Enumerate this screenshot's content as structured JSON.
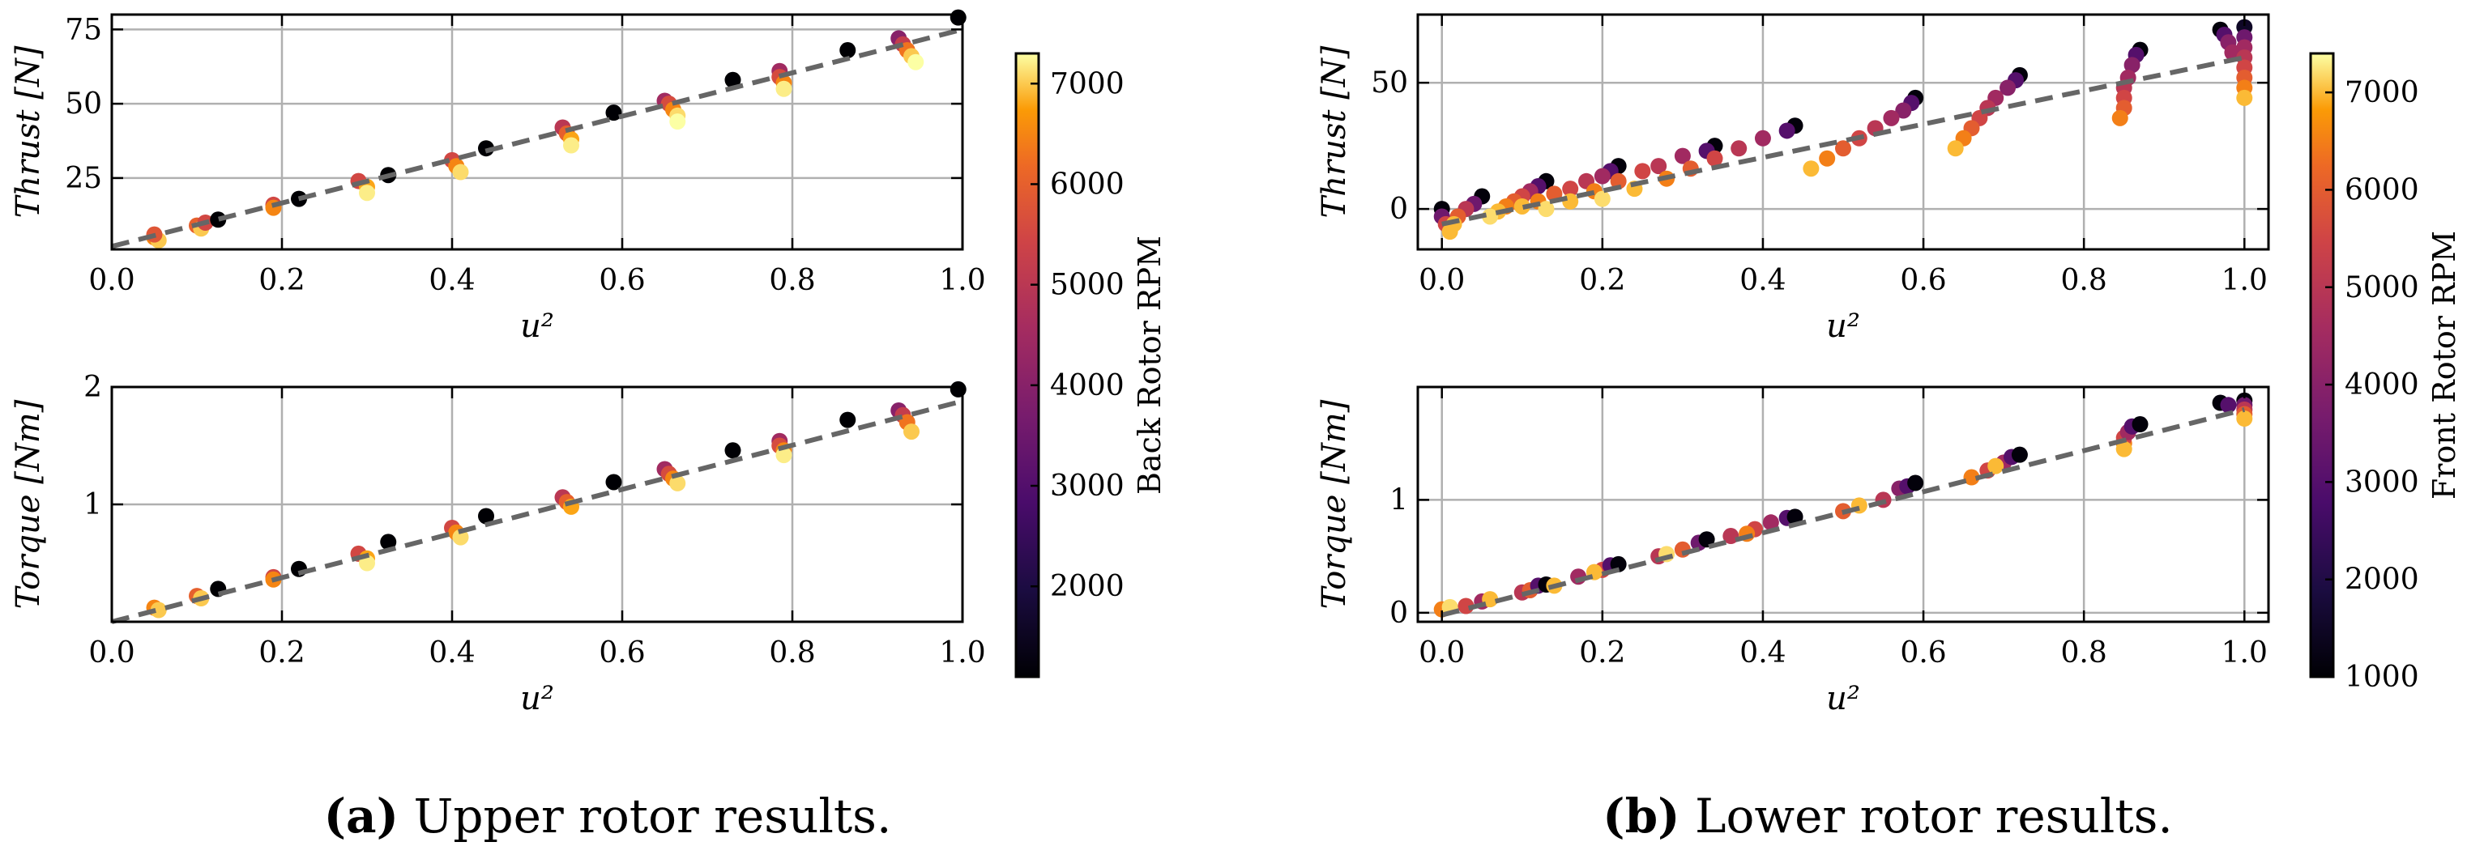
{
  "colors": {
    "fit_line": "#666666",
    "grid": "#b0b0b0",
    "axis": "#000000",
    "colormap": "inferno"
  },
  "chart_data": [
    {
      "type": "scatter",
      "id": "upper_thrust",
      "xlabel": "u²",
      "ylabel": "Thrust [N]",
      "xlim": [
        0,
        1
      ],
      "ylim": [
        1,
        80
      ],
      "xticks": [
        "0.0",
        "0.2",
        "0.4",
        "0.6",
        "0.8",
        "1.0"
      ],
      "yticks": [
        "25",
        "50",
        "75"
      ],
      "xtick_values": [
        0,
        0.2,
        0.4,
        0.6,
        0.8,
        1.0
      ],
      "ytick_values": [
        25,
        50,
        75
      ],
      "grid": true,
      "fit": {
        "x": [
          0,
          1
        ],
        "y": [
          2,
          75
        ]
      },
      "points": [
        [
          0.05,
          5,
          6500
        ],
        [
          0.055,
          4,
          7000
        ],
        [
          0.05,
          6,
          5800
        ],
        [
          0.1,
          9,
          6000
        ],
        [
          0.105,
          8,
          7000
        ],
        [
          0.11,
          10,
          5500
        ],
        [
          0.125,
          11,
          1100
        ],
        [
          0.19,
          16,
          5500
        ],
        [
          0.19,
          15,
          6500
        ],
        [
          0.22,
          18,
          1100
        ],
        [
          0.29,
          24,
          5500
        ],
        [
          0.3,
          22,
          6800
        ],
        [
          0.3,
          20,
          7200
        ],
        [
          0.325,
          26,
          1100
        ],
        [
          0.4,
          31,
          5500
        ],
        [
          0.405,
          29,
          6500
        ],
        [
          0.41,
          27,
          7100
        ],
        [
          0.44,
          35,
          1100
        ],
        [
          0.53,
          42,
          5000
        ],
        [
          0.535,
          40,
          6000
        ],
        [
          0.54,
          38,
          6800
        ],
        [
          0.54,
          36,
          7200
        ],
        [
          0.59,
          47,
          1100
        ],
        [
          0.65,
          51,
          4500
        ],
        [
          0.655,
          50,
          5600
        ],
        [
          0.66,
          48,
          6500
        ],
        [
          0.665,
          46,
          7100
        ],
        [
          0.665,
          44,
          7300
        ],
        [
          0.73,
          58,
          1100
        ],
        [
          0.785,
          61,
          4500
        ],
        [
          0.785,
          59,
          5600
        ],
        [
          0.79,
          57,
          6500
        ],
        [
          0.79,
          55,
          7200
        ],
        [
          0.865,
          68,
          1100
        ],
        [
          0.925,
          72,
          4000
        ],
        [
          0.93,
          70,
          5200
        ],
        [
          0.935,
          68,
          6300
        ],
        [
          0.94,
          66,
          7000
        ],
        [
          0.945,
          64,
          7300
        ],
        [
          0.995,
          79,
          1100
        ]
      ]
    },
    {
      "type": "scatter",
      "id": "upper_torque",
      "xlabel": "u²",
      "ylabel": "Torque [Nm]",
      "xlim": [
        0,
        1
      ],
      "ylim": [
        0,
        2
      ],
      "xticks": [
        "0.0",
        "0.2",
        "0.4",
        "0.6",
        "0.8",
        "1.0"
      ],
      "yticks": [
        "1",
        "2"
      ],
      "xtick_values": [
        0,
        0.2,
        0.4,
        0.6,
        0.8,
        1.0
      ],
      "ytick_values": [
        1,
        2
      ],
      "grid": true,
      "fit": {
        "x": [
          0,
          1
        ],
        "y": [
          0.0,
          1.88
        ]
      },
      "points": [
        [
          0.05,
          0.12,
          6500
        ],
        [
          0.055,
          0.1,
          7000
        ],
        [
          0.1,
          0.22,
          6000
        ],
        [
          0.105,
          0.2,
          7000
        ],
        [
          0.125,
          0.28,
          1100
        ],
        [
          0.19,
          0.38,
          5500
        ],
        [
          0.19,
          0.36,
          6500
        ],
        [
          0.22,
          0.45,
          1100
        ],
        [
          0.29,
          0.58,
          5500
        ],
        [
          0.3,
          0.54,
          6800
        ],
        [
          0.3,
          0.5,
          7200
        ],
        [
          0.325,
          0.68,
          1100
        ],
        [
          0.4,
          0.8,
          5500
        ],
        [
          0.405,
          0.76,
          6500
        ],
        [
          0.41,
          0.72,
          7100
        ],
        [
          0.44,
          0.9,
          1100
        ],
        [
          0.53,
          1.06,
          5000
        ],
        [
          0.535,
          1.02,
          6000
        ],
        [
          0.54,
          0.98,
          6800
        ],
        [
          0.59,
          1.19,
          1100
        ],
        [
          0.65,
          1.3,
          4500
        ],
        [
          0.655,
          1.26,
          5600
        ],
        [
          0.66,
          1.22,
          6500
        ],
        [
          0.665,
          1.18,
          7100
        ],
        [
          0.73,
          1.46,
          1100
        ],
        [
          0.785,
          1.54,
          4500
        ],
        [
          0.785,
          1.5,
          5600
        ],
        [
          0.79,
          1.46,
          6500
        ],
        [
          0.79,
          1.42,
          7200
        ],
        [
          0.865,
          1.72,
          1100
        ],
        [
          0.925,
          1.8,
          4000
        ],
        [
          0.93,
          1.76,
          5200
        ],
        [
          0.935,
          1.7,
          6300
        ],
        [
          0.94,
          1.62,
          7000
        ],
        [
          0.995,
          1.98,
          1100
        ]
      ]
    },
    {
      "type": "scatter",
      "id": "lower_thrust",
      "xlabel": "u²",
      "ylabel": "Thrust [N]",
      "xlim": [
        -0.03,
        1.03
      ],
      "ylim": [
        -16,
        77
      ],
      "xticks": [
        "0.0",
        "0.2",
        "0.4",
        "0.6",
        "0.8",
        "1.0"
      ],
      "yticks": [
        "0",
        "50"
      ],
      "xtick_values": [
        0,
        0.2,
        0.4,
        0.6,
        0.8,
        1.0
      ],
      "ytick_values": [
        0,
        50
      ],
      "grid": true,
      "fit": {
        "x": [
          0,
          1
        ],
        "y": [
          -6,
          60
        ]
      },
      "points": [
        [
          0.0,
          0,
          1100
        ],
        [
          0.0,
          -3,
          3500
        ],
        [
          0.005,
          -6,
          5500
        ],
        [
          0.01,
          -9,
          7000
        ],
        [
          0.05,
          5,
          1100
        ],
        [
          0.04,
          2,
          3500
        ],
        [
          0.03,
          0,
          5000
        ],
        [
          0.02,
          -3,
          6000
        ],
        [
          0.015,
          -6,
          7000
        ],
        [
          0.13,
          11,
          1100
        ],
        [
          0.12,
          9,
          3000
        ],
        [
          0.11,
          7,
          4500
        ],
        [
          0.1,
          5,
          5500
        ],
        [
          0.09,
          3,
          6000
        ],
        [
          0.08,
          1,
          6500
        ],
        [
          0.07,
          -1,
          7000
        ],
        [
          0.06,
          -3,
          7200
        ],
        [
          0.22,
          17,
          1100
        ],
        [
          0.21,
          15,
          3000
        ],
        [
          0.2,
          13,
          4500
        ],
        [
          0.18,
          11,
          5000
        ],
        [
          0.16,
          8,
          5500
        ],
        [
          0.14,
          6,
          6000
        ],
        [
          0.12,
          3,
          6500
        ],
        [
          0.1,
          1,
          7000
        ],
        [
          0.34,
          25,
          1100
        ],
        [
          0.33,
          23,
          3000
        ],
        [
          0.3,
          21,
          4500
        ],
        [
          0.27,
          17,
          5000
        ],
        [
          0.25,
          15,
          5500
        ],
        [
          0.22,
          11,
          6000
        ],
        [
          0.19,
          7,
          6500
        ],
        [
          0.16,
          3,
          7000
        ],
        [
          0.13,
          0,
          7200
        ],
        [
          0.44,
          33,
          1100
        ],
        [
          0.43,
          31,
          3000
        ],
        [
          0.4,
          28,
          4500
        ],
        [
          0.37,
          24,
          5000
        ],
        [
          0.34,
          20,
          5500
        ],
        [
          0.31,
          16,
          6000
        ],
        [
          0.28,
          12,
          6500
        ],
        [
          0.24,
          8,
          7000
        ],
        [
          0.2,
          4,
          7200
        ],
        [
          0.59,
          44,
          1100
        ],
        [
          0.585,
          42,
          3000
        ],
        [
          0.575,
          39,
          4000
        ],
        [
          0.56,
          36,
          4500
        ],
        [
          0.54,
          32,
          5000
        ],
        [
          0.52,
          28,
          5500
        ],
        [
          0.5,
          24,
          6000
        ],
        [
          0.48,
          20,
          6500
        ],
        [
          0.46,
          16,
          7000
        ],
        [
          0.72,
          53,
          1100
        ],
        [
          0.715,
          51,
          3000
        ],
        [
          0.705,
          48,
          4000
        ],
        [
          0.69,
          44,
          4500
        ],
        [
          0.68,
          40,
          5000
        ],
        [
          0.67,
          36,
          5500
        ],
        [
          0.66,
          32,
          6000
        ],
        [
          0.65,
          28,
          6500
        ],
        [
          0.64,
          24,
          7000
        ],
        [
          0.87,
          63,
          1100
        ],
        [
          0.865,
          61,
          3000
        ],
        [
          0.86,
          57,
          4000
        ],
        [
          0.855,
          52,
          4500
        ],
        [
          0.85,
          48,
          5000
        ],
        [
          0.85,
          44,
          5500
        ],
        [
          0.85,
          40,
          6000
        ],
        [
          0.845,
          36,
          6500
        ],
        [
          0.97,
          71,
          1100
        ],
        [
          0.975,
          69,
          3000
        ],
        [
          0.98,
          66,
          4000
        ],
        [
          0.985,
          62,
          4500
        ],
        [
          1.0,
          72,
          1500
        ],
        [
          1.0,
          68,
          3500
        ],
        [
          1.0,
          64,
          4500
        ],
        [
          1.0,
          60,
          5000
        ],
        [
          1.0,
          56,
          5500
        ],
        [
          1.0,
          52,
          6000
        ],
        [
          1.0,
          48,
          6500
        ],
        [
          1.0,
          44,
          7000
        ]
      ]
    },
    {
      "type": "scatter",
      "id": "lower_torque",
      "xlabel": "u²",
      "ylabel": "Torque [Nm]",
      "xlim": [
        -0.03,
        1.03
      ],
      "ylim": [
        -0.08,
        2.0
      ],
      "xticks": [
        "0.0",
        "0.2",
        "0.4",
        "0.6",
        "0.8",
        "1.0"
      ],
      "yticks": [
        "0",
        "1"
      ],
      "xtick_values": [
        0,
        0.2,
        0.4,
        0.6,
        0.8,
        1.0
      ],
      "ytick_values": [
        0,
        1
      ],
      "grid": true,
      "fit": {
        "x": [
          0,
          1
        ],
        "y": [
          -0.02,
          1.8
        ]
      },
      "points": [
        [
          0.0,
          0.03,
          6500
        ],
        [
          0.01,
          0.05,
          7200
        ],
        [
          0.03,
          0.06,
          5500
        ],
        [
          0.05,
          0.1,
          4500
        ],
        [
          0.06,
          0.12,
          7000
        ],
        [
          0.1,
          0.18,
          5000
        ],
        [
          0.11,
          0.2,
          6000
        ],
        [
          0.12,
          0.24,
          3000
        ],
        [
          0.13,
          0.25,
          1100
        ],
        [
          0.14,
          0.24,
          7000
        ],
        [
          0.17,
          0.32,
          4500
        ],
        [
          0.2,
          0.38,
          5500
        ],
        [
          0.21,
          0.42,
          3000
        ],
        [
          0.22,
          0.43,
          1100
        ],
        [
          0.19,
          0.36,
          7000
        ],
        [
          0.27,
          0.5,
          5000
        ],
        [
          0.3,
          0.56,
          6000
        ],
        [
          0.32,
          0.62,
          3500
        ],
        [
          0.33,
          0.65,
          1100
        ],
        [
          0.28,
          0.52,
          7200
        ],
        [
          0.36,
          0.68,
          5000
        ],
        [
          0.39,
          0.74,
          5500
        ],
        [
          0.41,
          0.8,
          4500
        ],
        [
          0.43,
          0.84,
          3000
        ],
        [
          0.44,
          0.85,
          1100
        ],
        [
          0.38,
          0.7,
          6500
        ],
        [
          0.5,
          0.9,
          6000
        ],
        [
          0.52,
          0.95,
          7000
        ],
        [
          0.55,
          1.0,
          5000
        ],
        [
          0.57,
          1.1,
          4000
        ],
        [
          0.58,
          1.12,
          3000
        ],
        [
          0.59,
          1.15,
          1100
        ],
        [
          0.66,
          1.2,
          6500
        ],
        [
          0.68,
          1.26,
          5500
        ],
        [
          0.7,
          1.33,
          4500
        ],
        [
          0.71,
          1.38,
          3000
        ],
        [
          0.72,
          1.4,
          1100
        ],
        [
          0.69,
          1.3,
          7000
        ],
        [
          0.85,
          1.5,
          6500
        ],
        [
          0.85,
          1.55,
          5500
        ],
        [
          0.855,
          1.6,
          4500
        ],
        [
          0.86,
          1.65,
          3000
        ],
        [
          0.87,
          1.67,
          1100
        ],
        [
          0.85,
          1.45,
          7000
        ],
        [
          0.97,
          1.86,
          1100
        ],
        [
          0.98,
          1.84,
          3000
        ],
        [
          1.0,
          1.88,
          1100
        ],
        [
          1.0,
          1.84,
          3500
        ],
        [
          1.0,
          1.8,
          5000
        ],
        [
          1.0,
          1.76,
          6000
        ],
        [
          1.0,
          1.72,
          7000
        ]
      ]
    }
  ],
  "colorbars": [
    {
      "id": "cb_a",
      "label": "Back Rotor RPM",
      "min": 1100,
      "max": 7300,
      "ticks": [
        "2000",
        "3000",
        "4000",
        "5000",
        "6000",
        "7000"
      ],
      "tick_values": [
        2000,
        3000,
        4000,
        5000,
        6000,
        7000
      ]
    },
    {
      "id": "cb_b",
      "label": "Front Rotor RPM",
      "min": 1000,
      "max": 7400,
      "ticks": [
        "1000",
        "2000",
        "3000",
        "4000",
        "5000",
        "6000",
        "7000"
      ],
      "tick_values": [
        1000,
        2000,
        3000,
        4000,
        5000,
        6000,
        7000
      ]
    }
  ],
  "captions": {
    "a": {
      "letter": "(a)",
      "text": " Upper rotor results."
    },
    "b": {
      "letter": "(b)",
      "text": " Lower rotor results."
    }
  }
}
